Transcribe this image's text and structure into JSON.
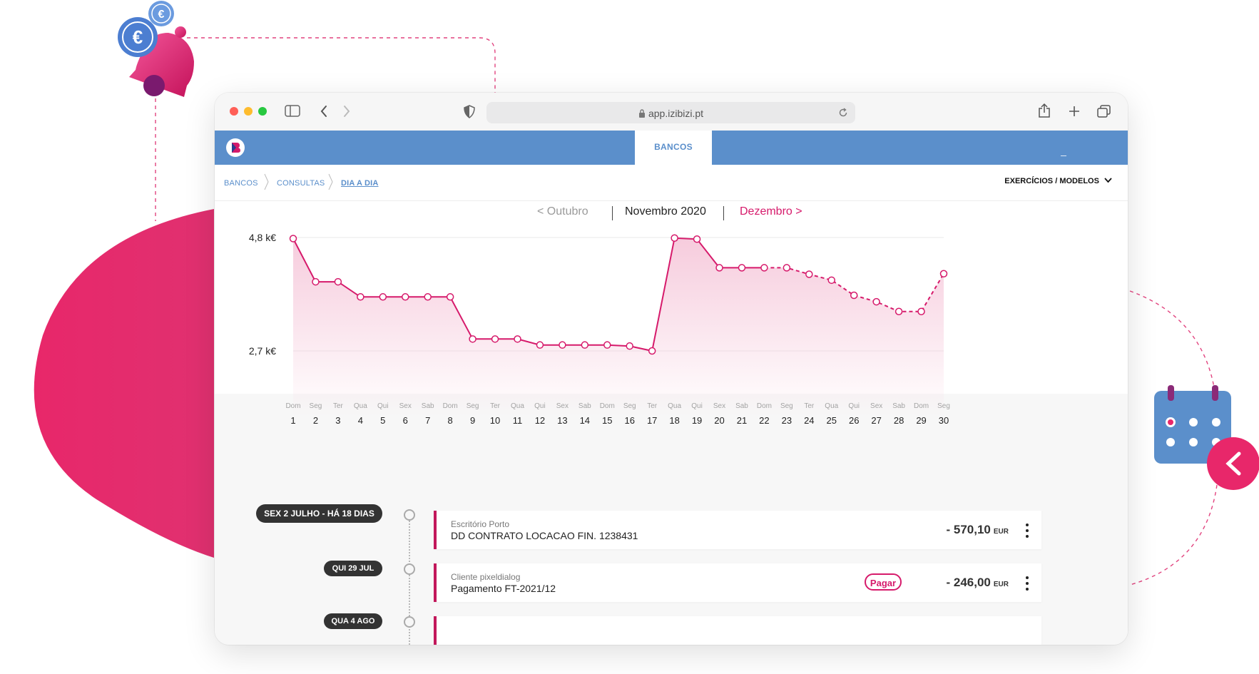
{
  "browser": {
    "url": "app.izibizi.pt"
  },
  "app_nav": {
    "active_tab": "BANCOS"
  },
  "breadcrumb": {
    "items": [
      "BANCOS",
      "CONSULTAS",
      "DIA A DIA"
    ]
  },
  "menu": {
    "exercises_label": "EXERCÍCIOS / MODELOS"
  },
  "month_nav": {
    "prev": "< Outubro",
    "current": "Novembro 2020",
    "next": "Dezembro >"
  },
  "chart_data": {
    "type": "line",
    "ytick_labels": [
      "4,8 k€",
      "2,7 k€"
    ],
    "ytick_values": [
      4.8,
      2.7
    ],
    "x": [
      1,
      2,
      3,
      4,
      5,
      6,
      7,
      8,
      9,
      10,
      11,
      12,
      13,
      14,
      15,
      16,
      17,
      18,
      19,
      20,
      21,
      22,
      23,
      24,
      25,
      26,
      27,
      28,
      29,
      30
    ],
    "weekdays": [
      "Dom",
      "Seg",
      "Ter",
      "Qua",
      "Qui",
      "Sex",
      "Sab",
      "Dom",
      "Seg",
      "Ter",
      "Qua",
      "Qui",
      "Sex",
      "Sab",
      "Dom",
      "Seg",
      "Ter",
      "Qua",
      "Qui",
      "Sex",
      "Sab",
      "Dom",
      "Seg",
      "Ter",
      "Qua",
      "Qui",
      "Sex",
      "Sab",
      "Dom",
      "Seg"
    ],
    "values": [
      4.78,
      3.98,
      3.98,
      3.7,
      3.7,
      3.7,
      3.7,
      3.7,
      2.92,
      2.92,
      2.92,
      2.81,
      2.81,
      2.81,
      2.81,
      2.79,
      2.7,
      4.79,
      4.77,
      4.24,
      4.24,
      4.24,
      4.24,
      4.12,
      4.01,
      3.73,
      3.61,
      3.43,
      3.43,
      4.13
    ],
    "projected_from_day": 22,
    "ylim": [
      1.0,
      5.0
    ],
    "grid": true,
    "line_color": "#d61a6b",
    "fill_color": "#f6c9db"
  },
  "timeline": {
    "dates": [
      "SEX 2 JULHO - HÁ 18 DIAS",
      "QUI 29 JUL",
      "QUA 4 AGO"
    ],
    "transactions": [
      {
        "subtitle": "Escritório Porto",
        "title": "DD CONTRATO LOCACAO FIN. 1238431",
        "amount": "- 570,10",
        "currency": "EUR"
      },
      {
        "subtitle": "Cliente pixeldialog",
        "title": "Pagamento FT-2021/12",
        "amount": "- 246,00",
        "currency": "EUR",
        "action": "Pagar"
      }
    ]
  },
  "colors": {
    "brand_blue": "#5b8fcb",
    "accent_pink": "#d61a6b",
    "blob_pink": "#e8276a",
    "calendar_blue": "#5b8fcb"
  }
}
